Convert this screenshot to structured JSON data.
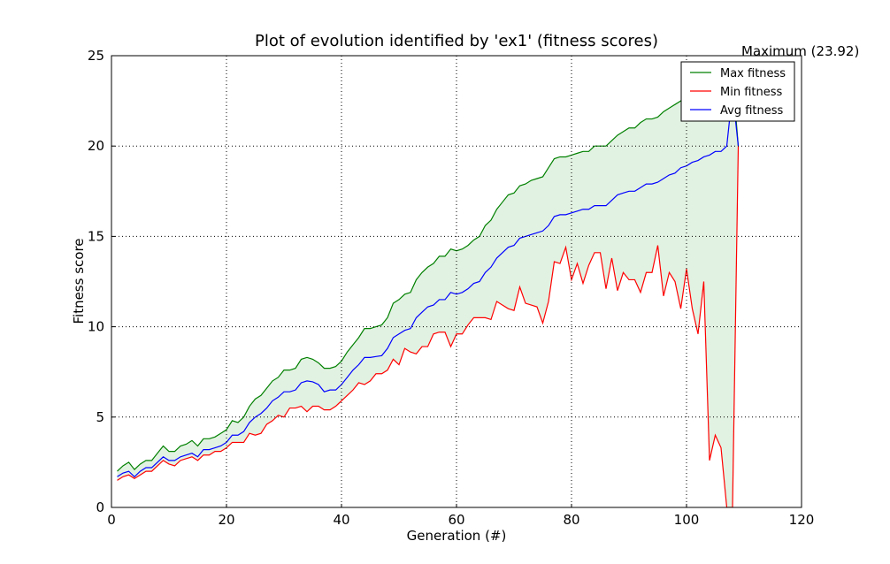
{
  "chart_data": {
    "type": "line",
    "title": "Plot of evolution identified by 'ex1' (fitness scores)",
    "x_label": "Generation (#)",
    "y_label": "Fitness score",
    "x": [
      1,
      2,
      3,
      4,
      5,
      6,
      7,
      8,
      9,
      10,
      11,
      12,
      13,
      14,
      15,
      16,
      17,
      18,
      19,
      20,
      21,
      22,
      23,
      24,
      25,
      26,
      27,
      28,
      29,
      30,
      31,
      32,
      33,
      34,
      35,
      36,
      37,
      38,
      39,
      40,
      41,
      42,
      43,
      44,
      45,
      46,
      47,
      48,
      49,
      50,
      51,
      52,
      53,
      54,
      55,
      56,
      57,
      58,
      59,
      60,
      61,
      62,
      63,
      64,
      65,
      66,
      67,
      68,
      69,
      70,
      71,
      72,
      73,
      74,
      75,
      76,
      77,
      78,
      79,
      80,
      81,
      82,
      83,
      84,
      85,
      86,
      87,
      88,
      89,
      90,
      91,
      92,
      93,
      94,
      95,
      96,
      97,
      98,
      99,
      100,
      101,
      102,
      103,
      104,
      105,
      106,
      107,
      108,
      109
    ],
    "series": [
      {
        "name": "Max fitness",
        "color": "#008000",
        "values": [
          2.0,
          2.3,
          2.5,
          2.1,
          2.4,
          2.6,
          2.6,
          3.0,
          3.4,
          3.1,
          3.1,
          3.4,
          3.5,
          3.7,
          3.4,
          3.8,
          3.8,
          3.9,
          4.1,
          4.3,
          4.8,
          4.7,
          5.0,
          5.6,
          6.0,
          6.2,
          6.6,
          7.0,
          7.2,
          7.6,
          7.6,
          7.7,
          8.2,
          8.3,
          8.2,
          8.0,
          7.7,
          7.7,
          7.8,
          8.1,
          8.6,
          9.0,
          9.4,
          9.9,
          9.9,
          10.0,
          10.1,
          10.5,
          11.3,
          11.5,
          11.8,
          11.9,
          12.6,
          13.0,
          13.3,
          13.5,
          13.9,
          13.9,
          14.3,
          14.2,
          14.3,
          14.5,
          14.8,
          15.0,
          15.6,
          15.9,
          16.5,
          16.9,
          17.3,
          17.4,
          17.8,
          17.9,
          18.1,
          18.2,
          18.3,
          18.8,
          19.3,
          19.4,
          19.4,
          19.5,
          19.6,
          19.7,
          19.7,
          20.0,
          20.0,
          20.0,
          20.3,
          20.6,
          20.8,
          21.0,
          21.0,
          21.3,
          21.5,
          21.5,
          21.6,
          21.9,
          22.1,
          22.3,
          22.5,
          22.8,
          23.0,
          23.1,
          23.3,
          23.4,
          23.6,
          23.7,
          23.8,
          23.92,
          20.0
        ]
      },
      {
        "name": "Min fitness",
        "color": "#ff0000",
        "values": [
          1.5,
          1.7,
          1.8,
          1.6,
          1.8,
          2.0,
          2.0,
          2.3,
          2.6,
          2.4,
          2.3,
          2.6,
          2.7,
          2.8,
          2.6,
          2.9,
          2.9,
          3.1,
          3.1,
          3.3,
          3.6,
          3.6,
          3.6,
          4.1,
          4.0,
          4.1,
          4.6,
          4.8,
          5.1,
          5.0,
          5.5,
          5.5,
          5.6,
          5.3,
          5.6,
          5.6,
          5.4,
          5.4,
          5.6,
          5.9,
          6.2,
          6.5,
          6.9,
          6.8,
          7.0,
          7.4,
          7.4,
          7.6,
          8.2,
          7.9,
          8.8,
          8.6,
          8.5,
          8.9,
          8.9,
          9.6,
          9.7,
          9.7,
          8.9,
          9.6,
          9.6,
          10.1,
          10.5,
          10.5,
          10.5,
          10.4,
          11.4,
          11.2,
          11.0,
          10.9,
          12.2,
          11.3,
          11.2,
          11.1,
          10.2,
          11.4,
          13.6,
          13.5,
          14.4,
          12.6,
          13.5,
          12.4,
          13.4,
          14.1,
          14.1,
          12.1,
          13.8,
          12.0,
          13.0,
          12.6,
          12.6,
          11.9,
          13.0,
          13.0,
          14.5,
          11.7,
          13.0,
          12.5,
          11.0,
          13.2,
          11.0,
          9.6,
          12.5,
          2.6,
          4.0,
          3.3,
          0,
          0,
          20.0
        ]
      },
      {
        "name": "Avg fitness",
        "color": "#0000ff",
        "values": [
          1.7,
          1.9,
          2.0,
          1.7,
          2.0,
          2.2,
          2.2,
          2.5,
          2.8,
          2.6,
          2.6,
          2.8,
          2.9,
          3.0,
          2.8,
          3.2,
          3.2,
          3.3,
          3.4,
          3.6,
          4.0,
          4.0,
          4.2,
          4.7,
          5.0,
          5.2,
          5.5,
          5.9,
          6.1,
          6.4,
          6.4,
          6.5,
          6.9,
          7.0,
          6.95,
          6.8,
          6.4,
          6.5,
          6.5,
          6.8,
          7.2,
          7.6,
          7.9,
          8.3,
          8.3,
          8.35,
          8.4,
          8.8,
          9.4,
          9.6,
          9.8,
          9.9,
          10.5,
          10.8,
          11.1,
          11.2,
          11.5,
          11.5,
          11.9,
          11.8,
          11.9,
          12.1,
          12.4,
          12.5,
          13.0,
          13.3,
          13.8,
          14.1,
          14.4,
          14.5,
          14.9,
          15.0,
          15.1,
          15.2,
          15.3,
          15.6,
          16.1,
          16.2,
          16.2,
          16.3,
          16.4,
          16.5,
          16.5,
          16.7,
          16.7,
          16.7,
          17.0,
          17.3,
          17.4,
          17.5,
          17.5,
          17.7,
          17.9,
          17.9,
          18.0,
          18.2,
          18.4,
          18.5,
          18.8,
          18.9,
          19.1,
          19.2,
          19.4,
          19.5,
          19.7,
          19.7,
          20.0,
          23.0,
          20.0
        ]
      }
    ],
    "fill_between": [
      0,
      1
    ],
    "fill_color": "#e2f2e2",
    "annotation": {
      "text": "Maximum (23.92)",
      "x": 108,
      "y": 23.92
    },
    "xlim": [
      0,
      120
    ],
    "xticks": [
      0,
      20,
      40,
      60,
      80,
      100,
      120
    ],
    "ylim": [
      0,
      25
    ],
    "yticks": [
      0,
      5,
      10,
      15,
      20,
      25
    ],
    "grid": true,
    "legend": "upper right"
  }
}
